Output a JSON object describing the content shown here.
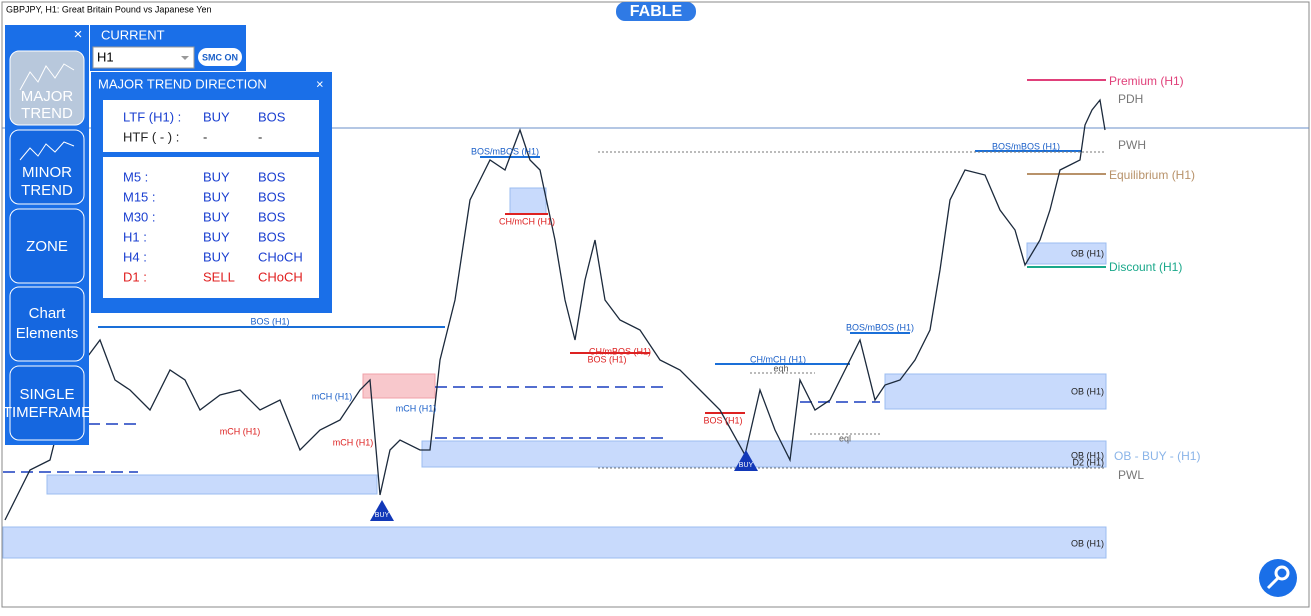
{
  "header": {
    "symbol": "GBPJPY, H1:  Great Britain Pound vs Japanese Yen",
    "brand": "FABLE"
  },
  "sidebar": {
    "close": "×",
    "buttons": [
      [
        "MAJOR",
        "TREND"
      ],
      [
        "MINOR",
        "TREND"
      ],
      [
        "ZONE"
      ],
      [
        "Chart",
        "Elements"
      ],
      [
        "SINGLE",
        "TIMEFRAME"
      ]
    ]
  },
  "current": {
    "title": "CURRENT",
    "timeframe": "H1",
    "smc": "SMC ON"
  },
  "trend_panel": {
    "title": "MAJOR TREND DIRECTION",
    "close": "×",
    "top_rows": [
      [
        "LTF (H1) :",
        "BUY",
        "BOS"
      ],
      [
        "HTF ( - ) :",
        "-",
        "-"
      ]
    ],
    "rows": [
      [
        "M5 :",
        "BUY",
        "BOS"
      ],
      [
        "M15 :",
        "BUY",
        "BOS"
      ],
      [
        "M30 :",
        "BUY",
        "BOS"
      ],
      [
        "H1 :",
        "BUY",
        "BOS"
      ],
      [
        "H4 :",
        "BUY",
        "CHoCH"
      ],
      [
        "D1 :",
        "SELL",
        "CHoCH"
      ]
    ]
  },
  "chart_labels": [
    "BOS (H1)",
    "BOS/mBOS (H1)",
    "CH/mCH (H1)",
    "mCH (H1)",
    "mCH (H1)",
    "mCH (H1)",
    "mCH (H1)",
    "BOS (H1)",
    "CH/mBOS (H1)",
    "CH/mCH (H1)",
    "eqh",
    "BOS (H1)",
    "eql",
    "BOS/mBOS (H1)",
    "BOS/mBOS (H1)",
    "OB (H1)",
    "OB (H1)",
    "OB (H1)",
    "D2 (H1)",
    "OB (H1)"
  ],
  "levels": [
    "Premium (H1)",
    "PDH",
    "PWH",
    "Equilibrium (H1)",
    "Discount (H1)",
    "OB - BUY -  (H1)",
    "PWL"
  ],
  "signals": [
    "BUY",
    "BUY"
  ]
}
